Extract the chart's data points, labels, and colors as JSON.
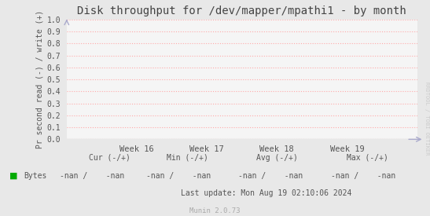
{
  "title": "Disk throughput for /dev/mapper/mpathi1 - by month",
  "ylabel": "Pr second read (-) / write (+)",
  "ylim": [
    0.0,
    1.0
  ],
  "yticks": [
    0.0,
    0.1,
    0.2,
    0.3,
    0.4,
    0.5,
    0.6,
    0.7,
    0.8,
    0.9,
    1.0
  ],
  "xtick_labels": [
    "Week 16",
    "Week 17",
    "Week 18",
    "Week 19"
  ],
  "xtick_positions": [
    0.2,
    0.4,
    0.6,
    0.8
  ],
  "bg_color": "#e8e8e8",
  "plot_bg_color": "#f5f5f5",
  "grid_color": "#ffaaaa",
  "title_color": "#444444",
  "label_color": "#555555",
  "legend_label": "Bytes",
  "legend_color": "#00aa00",
  "cur_label": "Cur (-/+)",
  "min_label": "Min (-/+)",
  "avg_label": "Avg (-/+)",
  "max_label": "Max (-/+)",
  "cur_val": "-nan /    -nan",
  "min_val": "-nan /    -nan",
  "avg_val": "-nan /    -nan",
  "max_val": "-nan /    -nan",
  "last_update": "Last update: Mon Aug 19 02:10:06 2024",
  "munin_version": "Munin 2.0.73",
  "rrdtool_label": "RRDTOOL / TOBI OETIKER",
  "arrow_color": "#aaaacc",
  "zero_line_color": "#888888"
}
